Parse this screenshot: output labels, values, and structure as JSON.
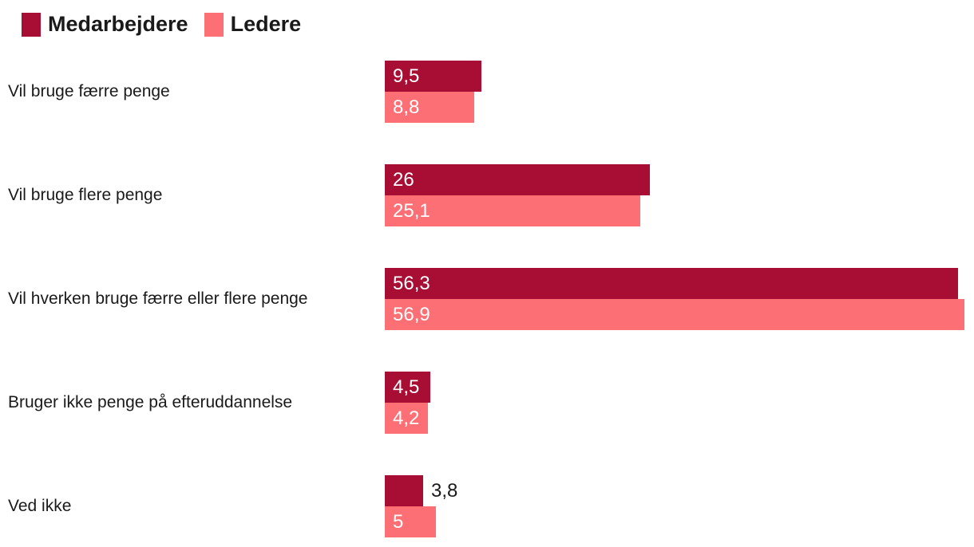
{
  "legend": {
    "items": [
      {
        "label": "Medarbejdere",
        "color": "#a80d33"
      },
      {
        "label": "Ledere",
        "color": "#fc6f75"
      }
    ]
  },
  "chart_data": {
    "type": "bar",
    "orientation": "horizontal",
    "title": "",
    "xlabel": "",
    "ylabel": "",
    "axes_hidden": true,
    "grid": false,
    "legend_position": "top-left",
    "decimal_separator": ",",
    "value_label_position": "inside-start-or-outside-if-short",
    "xlim": [
      0,
      57.9
    ],
    "categories": [
      "Vil bruge færre penge",
      "Vil bruge flere penge",
      "Vil hverken bruge færre eller flere penge",
      "Bruger ikke penge på efteruddannelse",
      "Ved ikke"
    ],
    "series": [
      {
        "name": "Medarbejdere",
        "color": "#a80d33",
        "values": [
          9.5,
          26,
          56.3,
          4.5,
          3.8
        ],
        "labels": [
          "9,5",
          "26",
          "56,3",
          "4,5",
          "3,8"
        ]
      },
      {
        "name": "Ledere",
        "color": "#fc6f75",
        "values": [
          8.8,
          25.1,
          56.9,
          4.2,
          5
        ],
        "labels": [
          "8,8",
          "25,1",
          "56,9",
          "4,2",
          "5"
        ]
      }
    ]
  }
}
